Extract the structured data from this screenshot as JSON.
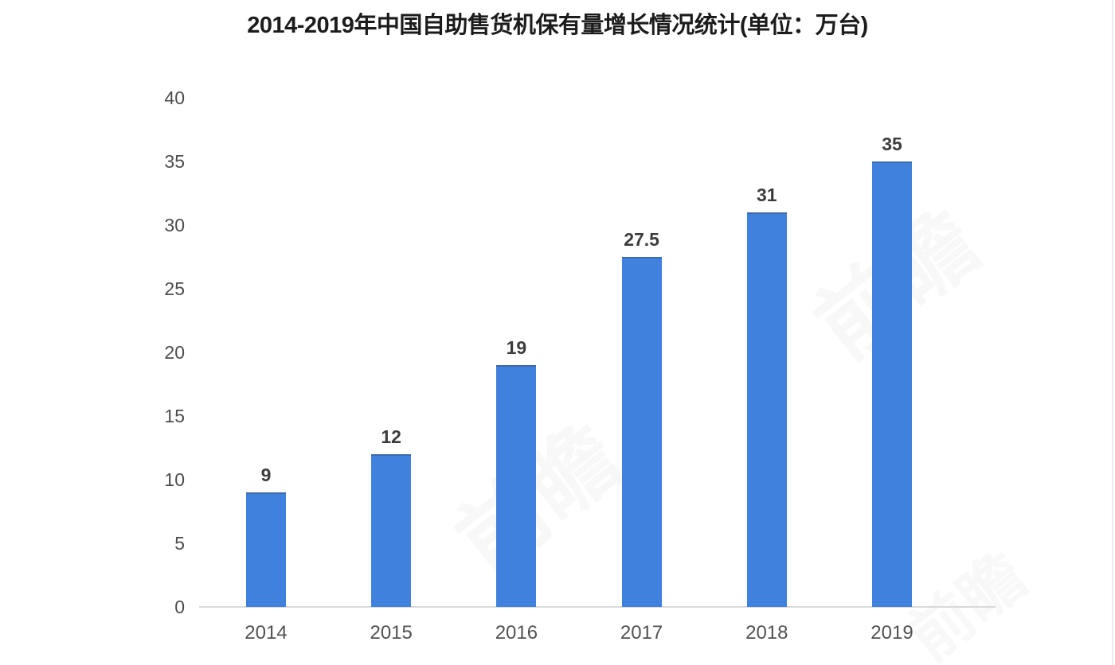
{
  "chart_data": {
    "type": "bar",
    "title": "2014-2019年中国自助售货机保有量增长情况统计(单位：万台)",
    "categories": [
      "2014",
      "2015",
      "2016",
      "2017",
      "2018",
      "2019"
    ],
    "values": [
      9,
      12,
      19,
      27.5,
      31,
      35
    ],
    "data_labels": [
      "9",
      "12",
      "19",
      "27.5",
      "31",
      "35"
    ],
    "xlabel": "",
    "ylabel": "",
    "ylim": [
      0,
      40
    ],
    "y_ticks": [
      0,
      5,
      10,
      15,
      20,
      25,
      30,
      35,
      40
    ],
    "grid": false,
    "legend": false,
    "bar_color": "#4081de",
    "axis_line_color": "#d9d9d9",
    "tick_label_color": "#4c4c4c",
    "data_label_color": "#3c3c3c",
    "title_color": "#1c1c1c"
  },
  "watermark": {
    "text": "前瞻"
  }
}
